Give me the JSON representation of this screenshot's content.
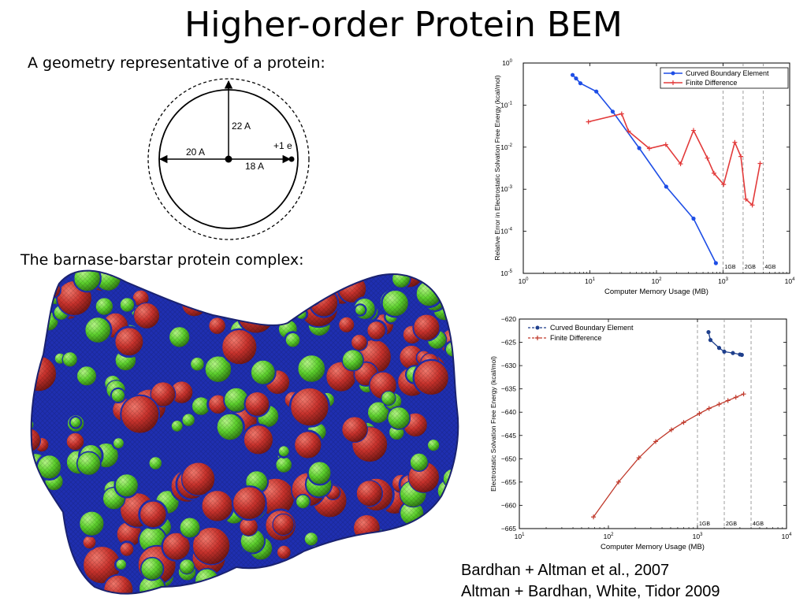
{
  "slide": {
    "title": "Higher-order Protein BEM",
    "geometry_label": "A geometry representative of a protein:",
    "complex_label": "The barnase-barstar protein complex:",
    "citations": [
      "Bardhan + Altman et al., 2007",
      "Altman + Bardhan, White, Tidor 2009"
    ]
  },
  "geometry": {
    "vertical_label": "22 A",
    "left_label": "20 A",
    "right_label": "18 A",
    "charge_label": "+1 e"
  },
  "protein_image": {
    "description": "molecular surface mesh",
    "colors": {
      "primary": "#c8322c",
      "secondary": "#62d62e",
      "tertiary": "#1f2fb0"
    }
  },
  "chart_data": [
    {
      "type": "line",
      "xlabel": "Computer Memory Usage (MB)",
      "ylabel": "Relative Error in Electrostatic Solvation Free Energy (kcal/mol)",
      "x_scale": "log",
      "y_scale": "log",
      "xlim": [
        1,
        10000
      ],
      "ylim": [
        1e-05,
        1
      ],
      "x_ticks": [
        "10^0",
        "10^1",
        "10^2",
        "10^3",
        "10^4"
      ],
      "y_ticks": [
        "10^0",
        "10^-1",
        "10^-2",
        "10^-3",
        "10^-4",
        "10^-5"
      ],
      "legend_position": "top-right",
      "memory_markers": [
        {
          "x": 1000,
          "label": "1GB"
        },
        {
          "x": 2000,
          "label": "2GB"
        },
        {
          "x": 4000,
          "label": "4GB"
        }
      ],
      "series": [
        {
          "name": "Curved Boundary Element",
          "color": "#1e4ee6",
          "marker": "dot",
          "x": [
            5.5,
            6.2,
            7.2,
            12.5,
            22,
            55,
            140,
            360,
            780
          ],
          "y": [
            0.52,
            0.43,
            0.33,
            0.21,
            0.07,
            0.0095,
            0.00115,
            0.0002,
            1.75e-05
          ]
        },
        {
          "name": "Finite Difference",
          "color": "#e23a3a",
          "marker": "plus",
          "x": [
            9.5,
            30,
            38,
            78,
            138,
            230,
            360,
            580,
            730,
            1020,
            1500,
            1850,
            2200,
            2750,
            3600
          ],
          "y": [
            0.04,
            0.062,
            0.024,
            0.0093,
            0.0115,
            0.004,
            0.025,
            0.0055,
            0.0024,
            0.0013,
            0.013,
            0.006,
            0.00058,
            0.00042,
            0.0041
          ]
        }
      ]
    },
    {
      "type": "line",
      "xlabel": "Computer Memory Usage (MB)",
      "ylabel": "Electrostatic Solvation Free Energy (kcal/mol)",
      "x_scale": "log",
      "xlim": [
        10,
        10000
      ],
      "ylim": [
        -665,
        -620
      ],
      "x_ticks": [
        "10^1",
        "10^2",
        "10^3",
        "10^4"
      ],
      "y_ticks": [
        -620,
        -625,
        -630,
        -635,
        -640,
        -645,
        -650,
        -655,
        -660,
        -665
      ],
      "legend_position": "top-left",
      "memory_markers": [
        {
          "x": 1000,
          "label": "1GB"
        },
        {
          "x": 2000,
          "label": "2GB"
        },
        {
          "x": 4000,
          "label": "4GB"
        }
      ],
      "series": [
        {
          "name": "Curved Boundary Element",
          "color": "#1e3f8c",
          "marker": "dot",
          "x": [
            1330,
            1400,
            1750,
            2000,
            2500,
            3000,
            3150
          ],
          "y": [
            -622.8,
            -624.5,
            -626.2,
            -627,
            -627.3,
            -627.6,
            -627.7
          ]
        },
        {
          "name": "Finite Difference",
          "color": "#c0392b",
          "marker": "plus",
          "x": [
            68,
            130,
            220,
            340,
            510,
            700,
            1050,
            1350,
            1750,
            2200,
            2700,
            3300
          ],
          "y": [
            -662.5,
            -655,
            -649.8,
            -646.3,
            -643.8,
            -642.2,
            -640.3,
            -639.2,
            -638.3,
            -637.5,
            -636.8,
            -636.1
          ]
        }
      ]
    }
  ]
}
